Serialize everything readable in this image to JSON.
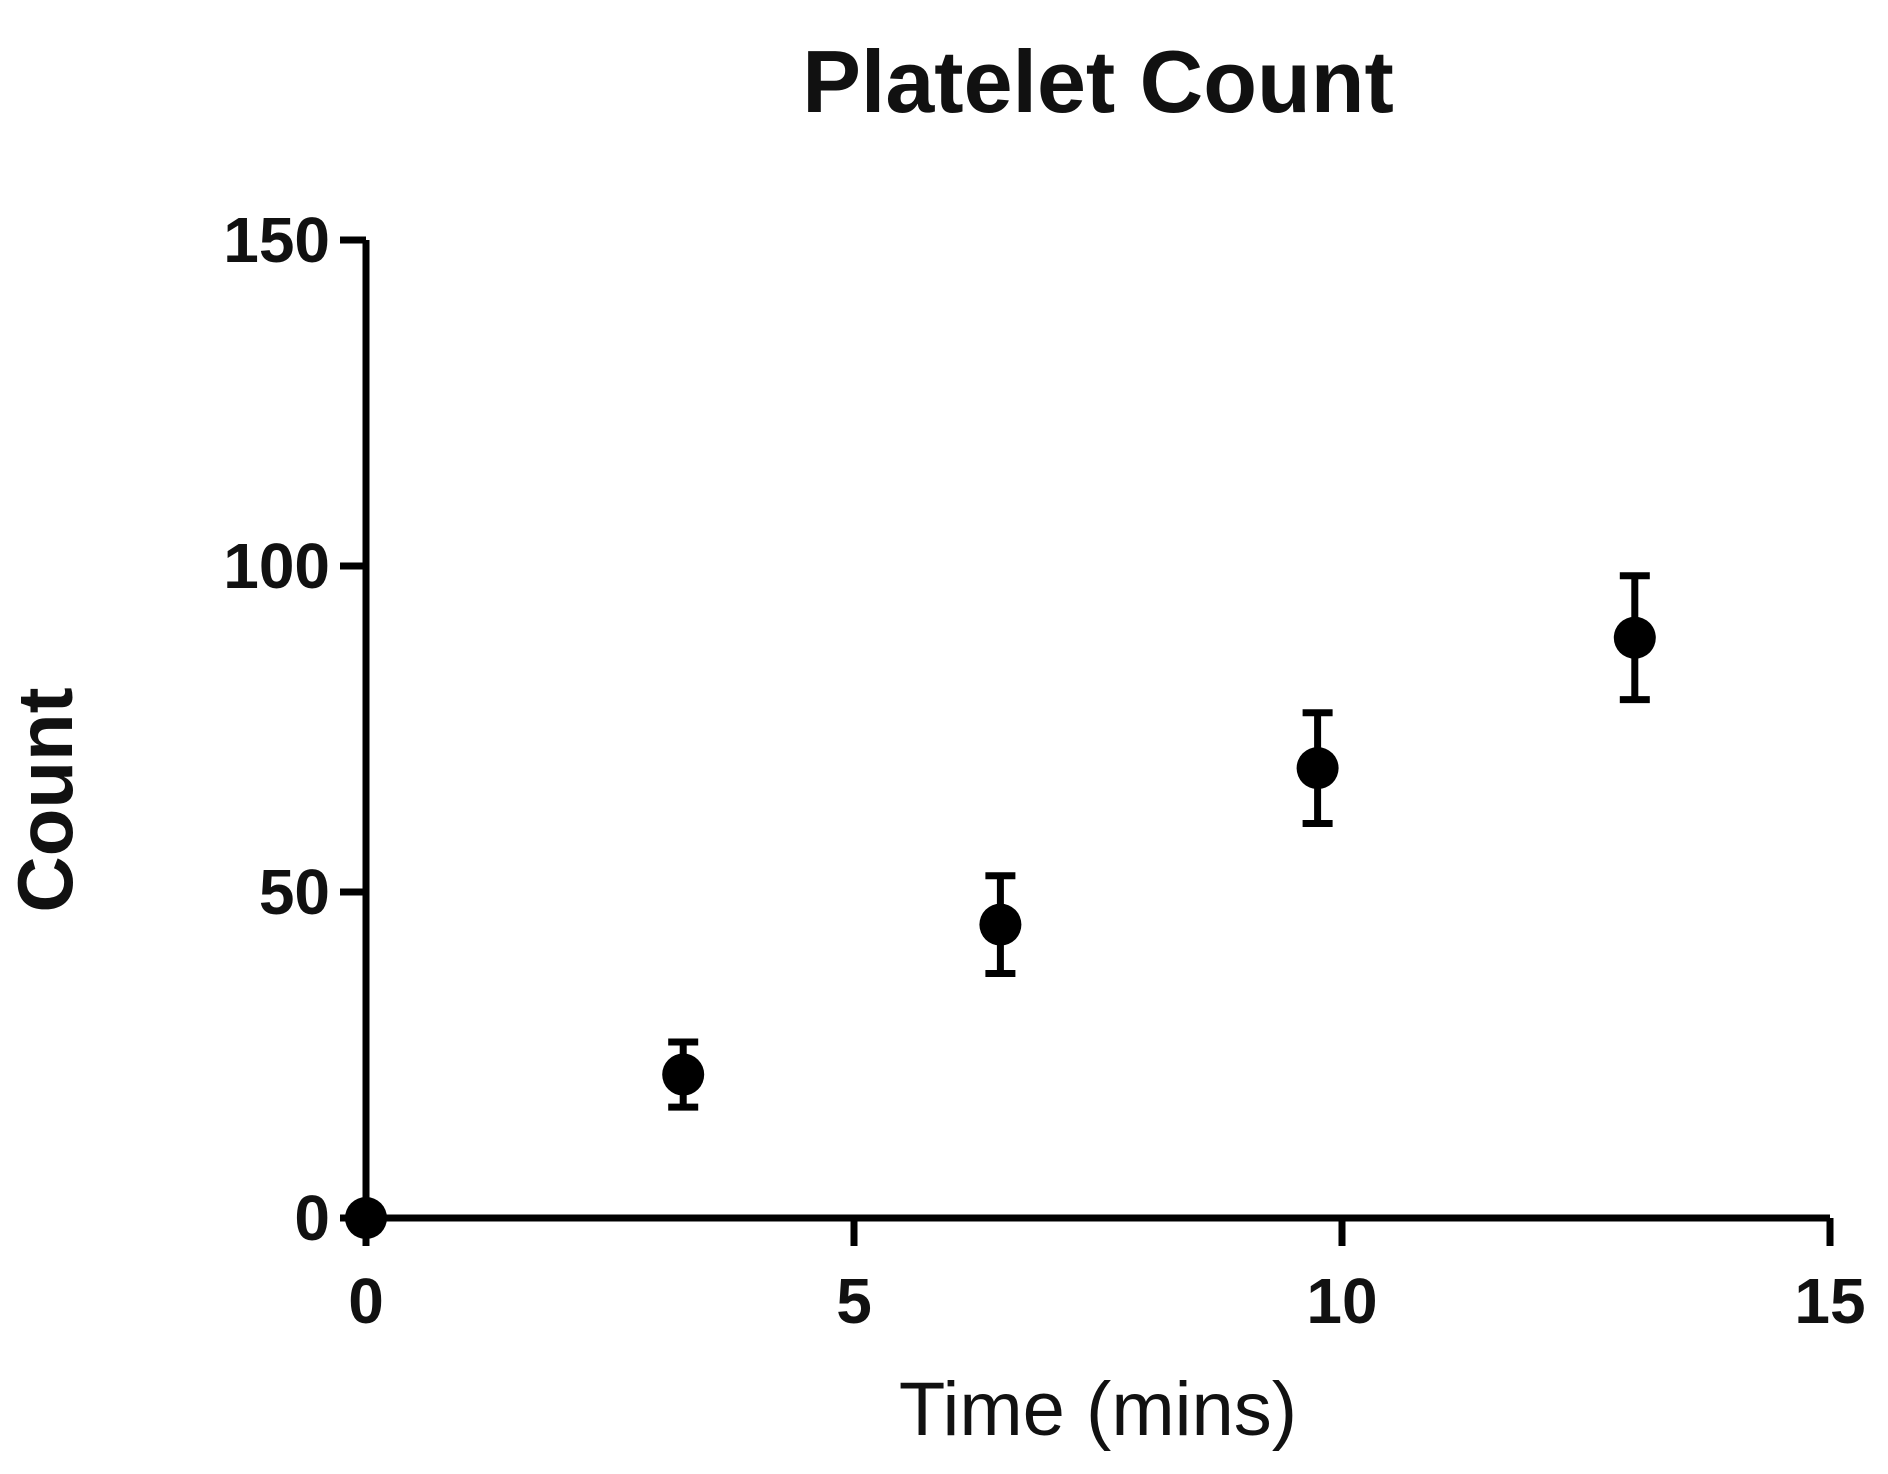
{
  "chart_data": {
    "type": "scatter",
    "title": "Platelet Count",
    "xlabel": "Time (mins)",
    "ylabel": "Count",
    "xlim": [
      0,
      15
    ],
    "ylim": [
      0,
      150
    ],
    "x_ticks": [
      0,
      5,
      10,
      15
    ],
    "y_ticks": [
      0,
      50,
      100,
      150
    ],
    "x_tick_labels": [
      "0",
      "5",
      "10",
      "15"
    ],
    "y_tick_labels": [
      "0",
      "50",
      "100",
      "150"
    ],
    "grid": false,
    "legend": "none",
    "colors": {
      "marker": "#000000",
      "axis": "#000000",
      "text": "#111111"
    },
    "series": [
      {
        "points": [
          {
            "x": 0,
            "y": 0,
            "err": 0
          },
          {
            "x": 3.25,
            "y": 22,
            "err": 5
          },
          {
            "x": 6.5,
            "y": 45,
            "err": 7.5
          },
          {
            "x": 9.75,
            "y": 69,
            "err": 8.5
          },
          {
            "x": 13,
            "y": 89,
            "err": 9.5
          }
        ]
      }
    ]
  }
}
